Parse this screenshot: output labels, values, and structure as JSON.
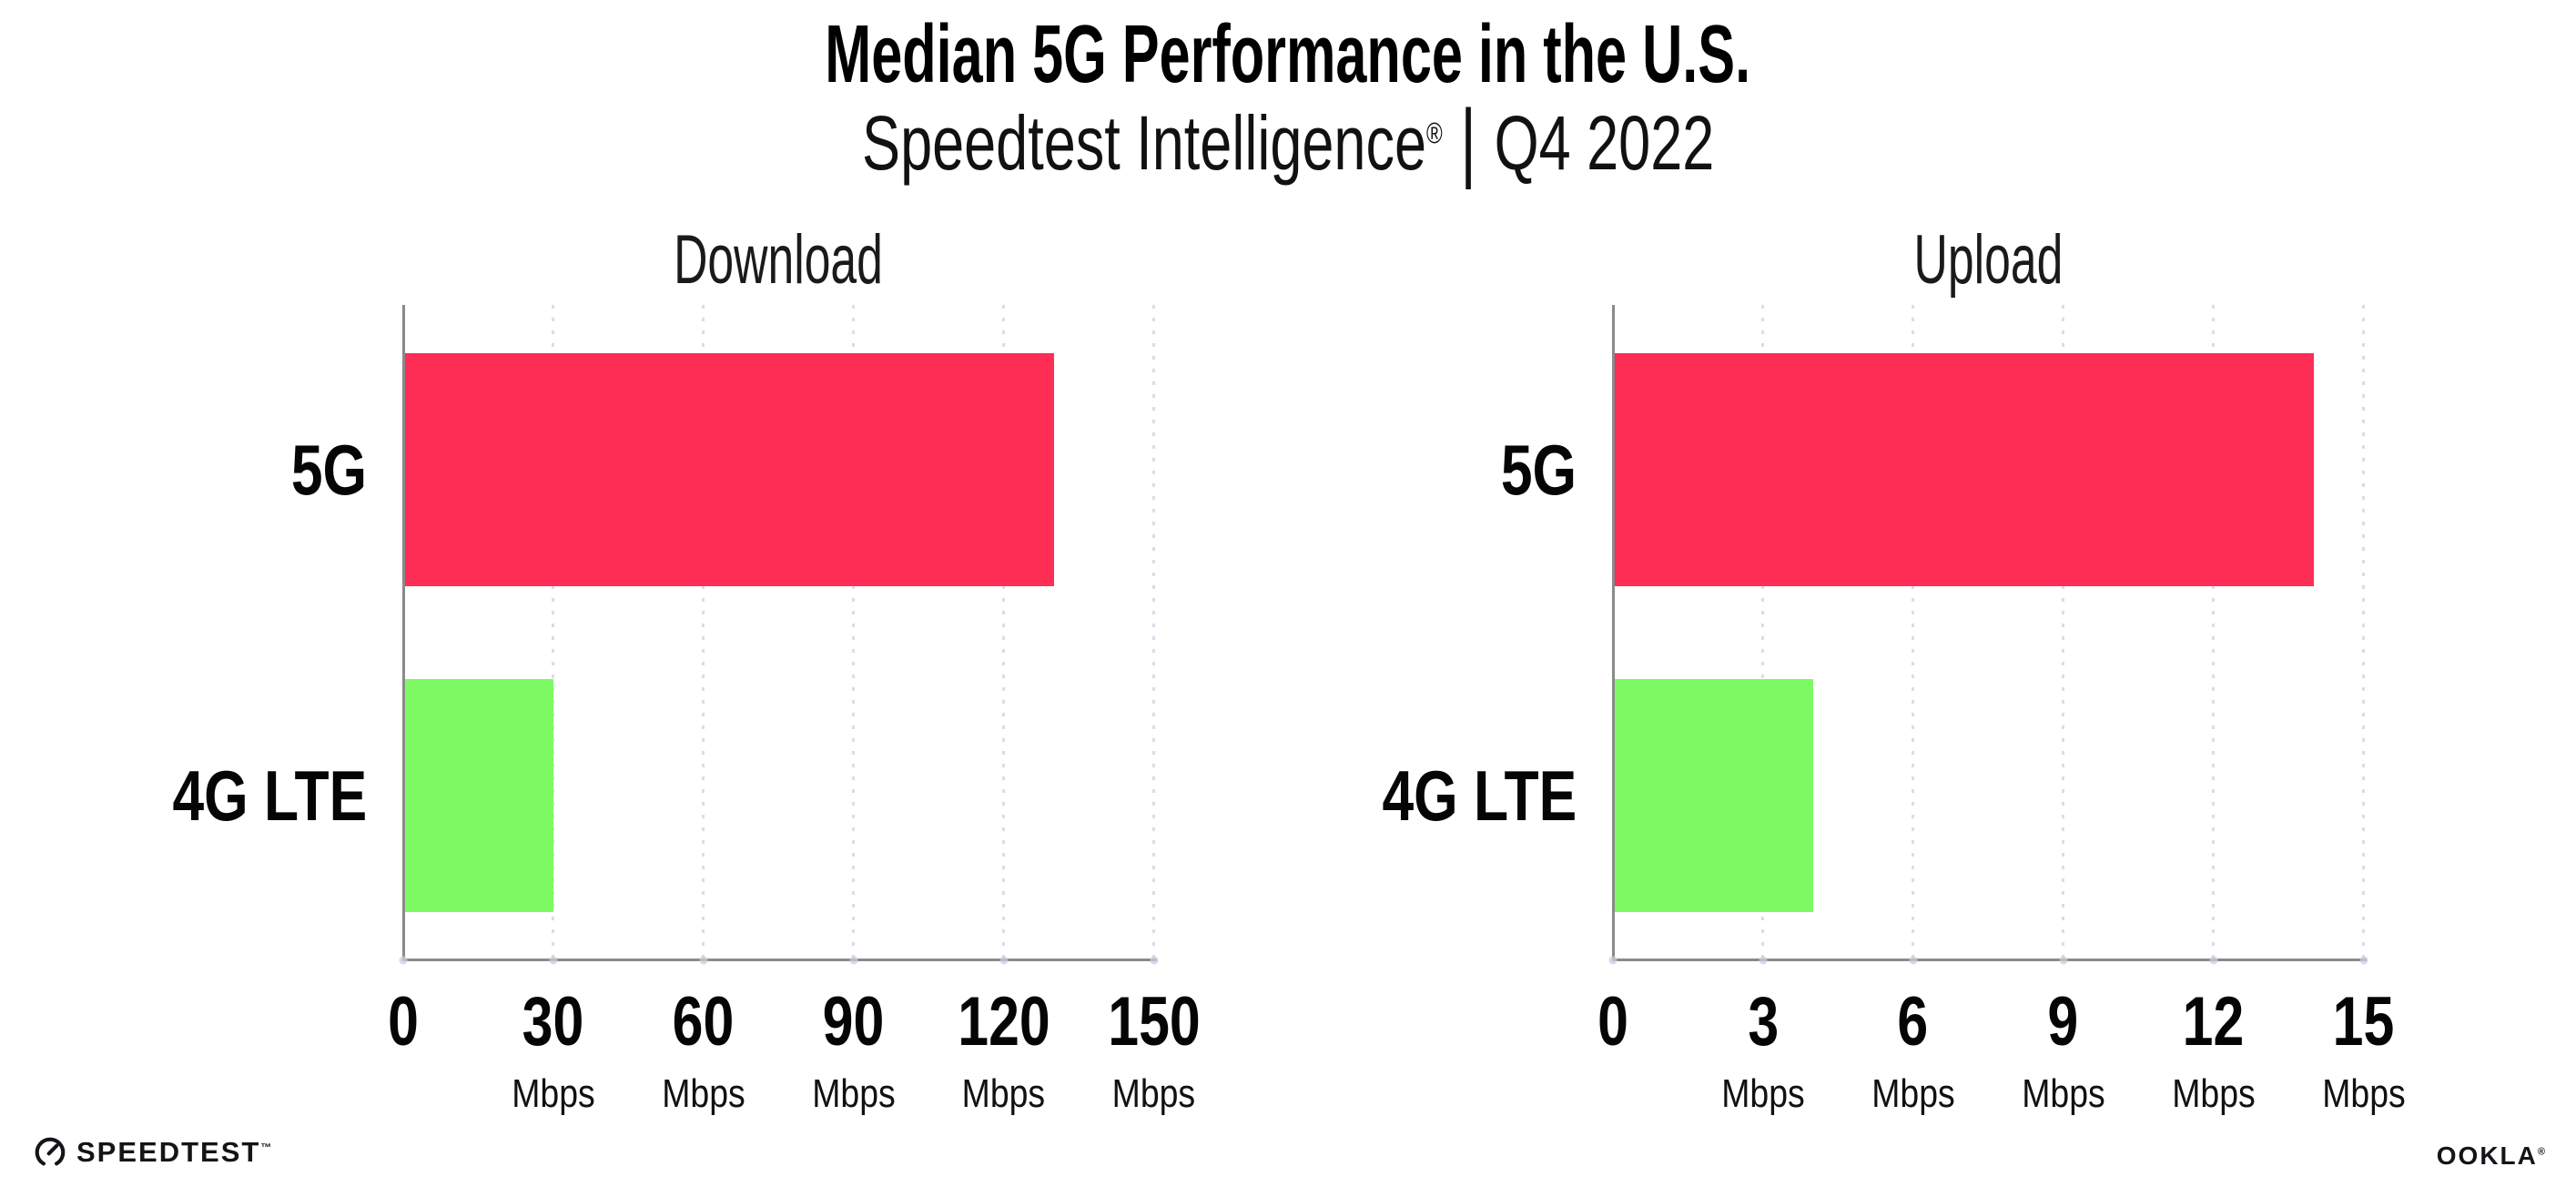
{
  "header": {
    "title": "Median 5G Performance in the U.S.",
    "subtitle_brand": "Speedtest Intelligence",
    "subtitle_reg": "®",
    "subtitle_separator": "|",
    "subtitle_period": "Q4 2022"
  },
  "chart_data": [
    {
      "type": "bar",
      "orientation": "horizontal",
      "title": "Download",
      "categories": [
        "5G",
        "4G LTE"
      ],
      "values": [
        130,
        30
      ],
      "value_unit": "Mbps",
      "xlim": [
        0,
        150
      ],
      "xticks": [
        0,
        30,
        60,
        90,
        120,
        150
      ],
      "xtick_unit_label": "Mbps",
      "bar_colors": [
        "#fe2d56",
        "#7efb64"
      ],
      "grid": "vertical-dotted",
      "legend": "none"
    },
    {
      "type": "bar",
      "orientation": "horizontal",
      "title": "Upload",
      "categories": [
        "5G",
        "4G LTE"
      ],
      "values": [
        14,
        4
      ],
      "value_unit": "Mbps",
      "xlim": [
        0,
        15
      ],
      "xticks": [
        0,
        3,
        6,
        9,
        12,
        15
      ],
      "xtick_unit_label": "Mbps",
      "bar_colors": [
        "#fe2d56",
        "#7efb64"
      ],
      "grid": "vertical-dotted",
      "legend": "none"
    }
  ],
  "footer": {
    "speedtest_label": "SPEEDTEST",
    "speedtest_mark": "™",
    "ookla_label": "OOKLA",
    "ookla_mark": "®"
  },
  "colors": {
    "bar_5g": "#fe2d56",
    "bar_4g_lte": "#7efb64",
    "axis_line": "#8a8a8a",
    "gridline": "#dcdce8",
    "text": "#0b0b0b",
    "background": "#ffffff"
  }
}
